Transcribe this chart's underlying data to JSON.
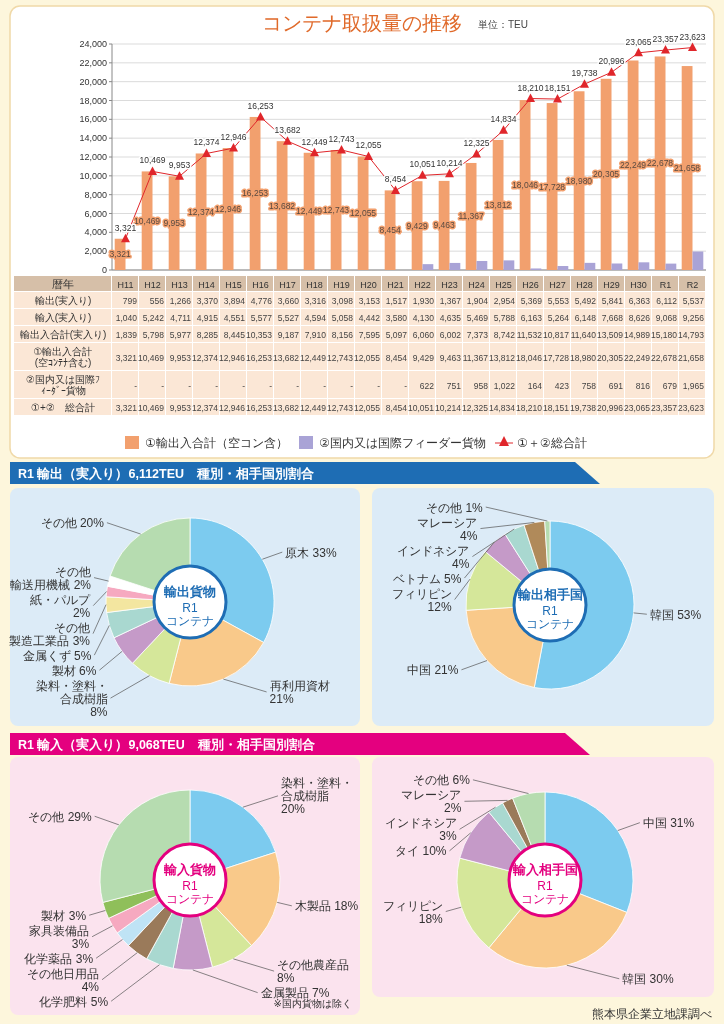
{
  "chart_data": [
    {
      "type": "bar",
      "title": "コンテナ取扱量の推移",
      "subtitle": "単位：TEU",
      "xlabel": "暦年",
      "categories": [
        null,
        null,
        null,
        null,
        null,
        null,
        null,
        null,
        null,
        null,
        null,
        null,
        null,
        null,
        null,
        null,
        null,
        null,
        null,
        null,
        null,
        null
      ],
      "series": [
        {
          "name": "①輸出入合計（空コン含）",
          "color": "#f2a06e",
          "values": [
            3321,
            10469,
            9953,
            12374,
            12946,
            16253,
            13682,
            12449,
            12743,
            12055,
            8454,
            9429,
            9463,
            11367,
            13812,
            18046,
            17728,
            18980,
            20305,
            22249,
            22678,
            21658
          ],
          "value_labels": [
            "3,321",
            "10,469",
            "9,953",
            "12,374",
            "12,946",
            "16,253",
            "13,682",
            "12,449",
            "12,743",
            "12,055",
            "8,454",
            "9,429",
            "9,463",
            "11,367",
            "13,812",
            "18,046",
            "17,728",
            "18,980",
            "20,305",
            "22,249",
            "22,678",
            "21,658"
          ]
        },
        {
          "name": "②国内又は国際フィーダー貨物",
          "color": "#a9a3d6",
          "values": [
            null,
            null,
            null,
            null,
            null,
            null,
            null,
            null,
            null,
            null,
            null,
            622,
            751,
            958,
            1022,
            164,
            423,
            758,
            691,
            816,
            679,
            1965
          ]
        },
        {
          "name": "①＋②総合計",
          "type": "line",
          "color": "#e0262b",
          "marker": "triangle",
          "values": [
            3321,
            10469,
            9953,
            12374,
            12946,
            16253,
            13682,
            12449,
            12743,
            12055,
            8454,
            10051,
            10214,
            12325,
            14834,
            18210,
            18151,
            19738,
            20996,
            23065,
            23357,
            23623
          ],
          "value_labels": [
            "3,321",
            "10,469",
            "9,953",
            "12,374",
            "12,946",
            "16,253",
            "13,682",
            "12,449",
            "12,743",
            "12,055",
            "8,454",
            "10,051",
            "10,214",
            "12,325",
            "14,834",
            "18,210",
            "18,151",
            "19,738",
            "20,996",
            "23,065",
            "23,357",
            "23,623"
          ]
        }
      ],
      "ylim": [
        0,
        24000
      ],
      "yticks": [
        {
          "value": 0,
          "label": "0"
        },
        {
          "value": 2000,
          "label": "2,000"
        },
        {
          "value": 4000,
          "label": "4,000"
        },
        {
          "value": 6000,
          "label": "6,000"
        },
        {
          "value": 8000,
          "label": "8,000"
        },
        {
          "value": 10000,
          "label": "10,000"
        },
        {
          "value": 12000,
          "label": "12,000"
        },
        {
          "value": 14000,
          "label": "14,000"
        },
        {
          "value": 16000,
          "label": "16,000"
        },
        {
          "value": 18000,
          "label": "18,000"
        },
        {
          "value": 20000,
          "label": "20,000"
        },
        {
          "value": 22000,
          "label": "22,000"
        },
        {
          "value": 24000,
          "label": "24,000"
        }
      ],
      "grid": "y",
      "legend": "bottom",
      "tick_labels": "y"
    },
    {
      "type": "other",
      "data_labels": true,
      "categories": [
        "H11",
        "H12",
        "H13",
        "H14",
        "H15",
        "H16",
        "H17",
        "H18",
        "H19",
        "H20",
        "H21",
        "H22",
        "H23",
        "H24",
        "H25",
        "H26",
        "H27",
        "H28",
        "H29",
        "H30",
        "R1",
        "R2"
      ],
      "series": [
        {
          "name": "輸出(実入り)",
          "values": [
            799,
            556,
            1266,
            3370,
            3894,
            4776,
            3660,
            3316,
            3098,
            3153,
            1517,
            1930,
            1367,
            1904,
            2954,
            5369,
            5553,
            5492,
            5841,
            6363,
            6112,
            5537
          ],
          "value_labels": [
            "799",
            "556",
            "1,266",
            "3,370",
            "3,894",
            "4,776",
            "3,660",
            "3,316",
            "3,098",
            "3,153",
            "1,517",
            "1,930",
            "1,367",
            "1,904",
            "2,954",
            "5,369",
            "5,553",
            "5,492",
            "5,841",
            "6,363",
            "6,112",
            "5,537"
          ]
        },
        {
          "name": "輸入(実入り)",
          "values": [
            1040,
            5242,
            4711,
            4915,
            4551,
            5577,
            5527,
            4594,
            5058,
            4442,
            3580,
            4130,
            4635,
            5469,
            5788,
            6163,
            5264,
            6148,
            7668,
            8626,
            9068,
            9256
          ],
          "value_labels": [
            "1,040",
            "5,242",
            "4,711",
            "4,915",
            "4,551",
            "5,577",
            "5,527",
            "4,594",
            "5,058",
            "4,442",
            "3,580",
            "4,130",
            "4,635",
            "5,469",
            "5,788",
            "6,163",
            "5,264",
            "6,148",
            "7,668",
            "8,626",
            "9,068",
            "9,256"
          ]
        },
        {
          "name": "輸出入合計(実入り)",
          "values": [
            1839,
            5798,
            5977,
            8285,
            8445,
            10353,
            9187,
            7910,
            8156,
            7595,
            5097,
            6060,
            6002,
            7373,
            8742,
            11532,
            10817,
            11640,
            13509,
            14989,
            15180,
            14793
          ],
          "value_labels": [
            "1,839",
            "5,798",
            "5,977",
            "8,285",
            "8,445",
            "10,353",
            "9,187",
            "7,910",
            "8,156",
            "7,595",
            "5,097",
            "6,060",
            "6,002",
            "7,373",
            "8,742",
            "11,532",
            "10,817",
            "11,640",
            "13,509",
            "14,989",
            "15,180",
            "14,793"
          ]
        },
        {
          "name": "①輸出入合計(空ｺﾝﾃﾅ含む)",
          "values": [
            3321,
            10469,
            9953,
            12374,
            12946,
            16253,
            13682,
            12449,
            12743,
            12055,
            8454,
            9429,
            9463,
            11367,
            13812,
            18046,
            17728,
            18980,
            20305,
            22249,
            22678,
            21658
          ],
          "value_labels": [
            "3,321",
            "10,469",
            "9,953",
            "12,374",
            "12,946",
            "16,253",
            "13,682",
            "12,449",
            "12,743",
            "12,055",
            "8,454",
            "9,429",
            "9,463",
            "11,367",
            "13,812",
            "18,046",
            "17,728",
            "18,980",
            "20,305",
            "22,249",
            "22,678",
            "21,658"
          ]
        },
        {
          "name": "②国内又は国際ﾌｨｰﾀﾞｰ貨物",
          "values": [
            null,
            null,
            null,
            null,
            null,
            null,
            null,
            null,
            null,
            null,
            null,
            622,
            751,
            958,
            1022,
            164,
            423,
            758,
            691,
            816,
            679,
            1965
          ],
          "value_labels": [
            "-",
            "-",
            "-",
            "-",
            "-",
            "-",
            "-",
            "-",
            "-",
            "-",
            "-",
            "622",
            "751",
            "958",
            "1,022",
            "164",
            "423",
            "758",
            "691",
            "816",
            "679",
            "1,965"
          ]
        },
        {
          "name": "①+②　総合計",
          "values": [
            3321,
            10469,
            9953,
            12374,
            12946,
            16253,
            13682,
            12449,
            12743,
            12055,
            8454,
            10051,
            10214,
            12325,
            14834,
            18210,
            18151,
            19738,
            20996,
            23065,
            23357,
            23623
          ],
          "value_labels": [
            "3,321",
            "10,469",
            "9,953",
            "12,374",
            "12,946",
            "16,253",
            "13,682",
            "12,449",
            "12,743",
            "12,055",
            "8,454",
            "10,051",
            "10,214",
            "12,325",
            "14,834",
            "18,210",
            "18,151",
            "19,738",
            "20,996",
            "23,065",
            "23,357",
            "23,623"
          ]
        }
      ]
    },
    {
      "type": "donut",
      "title": "R1 輸出（実入り）6,112TEU　種別・相手国別割合",
      "subtitle": "輸出貨物",
      "annotations": [
        "R1",
        "コンテナ"
      ],
      "categories": [
        "原木",
        "再利用資材",
        "染料・塗料・合成樹脂",
        "製材",
        "金属くず",
        "その他製造工業品",
        "紙・パルプ",
        "その他輸送用機械",
        "その他"
      ],
      "values": [
        33,
        21,
        8,
        6,
        5,
        3,
        2,
        2,
        20
      ],
      "value_labels": [
        "33%",
        "21%",
        "8%",
        "6%",
        "5%",
        "3%",
        "2%",
        "2%",
        "20%"
      ],
      "colors": [
        "#7ccbef",
        "#f9c98a",
        "#d5e79a",
        "#c59ac8",
        "#a9d8d0",
        "#f3e6a0",
        "#f6a9c0",
        "#ffffff",
        "#b6dcb0"
      ]
    },
    {
      "type": "donut",
      "subtitle": "輸出相手国",
      "annotations": [
        "R1",
        "コンテナ"
      ],
      "categories": [
        "韓国",
        "中国",
        "フィリピン",
        "ベトナム",
        "インドネシア",
        "マレーシア",
        "その他"
      ],
      "values": [
        53,
        21,
        12,
        5,
        4,
        4,
        1
      ],
      "value_labels": [
        "53%",
        "21%",
        "12%",
        "5%",
        "4%",
        "4%",
        "1%"
      ],
      "colors": [
        "#7ccbef",
        "#f9c98a",
        "#d5e79a",
        "#c59ac8",
        "#a9d8d0",
        "#b08a5a",
        "#b6dcb0"
      ]
    },
    {
      "type": "donut",
      "title": "R1 輸入（実入り）9,068TEU　種別・相手国別割合",
      "subtitle": "輸入貨物",
      "annotations": [
        "R1",
        "コンテナ",
        "※国内貨物は除く"
      ],
      "categories": [
        "染料・塗料・合成樹脂",
        "木製品",
        "その他農産品",
        "金属製品",
        "化学肥料",
        "その他日用品",
        "化学薬品",
        "家具装備品",
        "製材",
        "その他"
      ],
      "values": [
        20,
        18,
        8,
        7,
        5,
        4,
        3,
        3,
        3,
        29
      ],
      "value_labels": [
        "20%",
        "18%",
        "8%",
        "7%",
        "5%",
        "4%",
        "3%",
        "3%",
        "3%",
        "29%"
      ],
      "colors": [
        "#7ccbef",
        "#f9c98a",
        "#d5e79a",
        "#c59ac8",
        "#a9d8d0",
        "#9a7a5a",
        "#bfe3f5",
        "#f6a9c0",
        "#8fbf5a",
        "#b6dcb0"
      ]
    },
    {
      "type": "donut",
      "subtitle": "輸入相手国",
      "annotations": [
        "R1",
        "コンテナ",
        "熊本県企業立地課調べ"
      ],
      "categories": [
        "中国",
        "韓国",
        "フィリピン",
        "タイ",
        "インドネシア",
        "マレーシア",
        "その他"
      ],
      "values": [
        31,
        30,
        18,
        10,
        3,
        2,
        6
      ],
      "value_labels": [
        "31%",
        "30%",
        "18%",
        "10%",
        "3%",
        "2%",
        "6%"
      ],
      "colors": [
        "#7ccbef",
        "#f9c98a",
        "#d5e79a",
        "#c59ac8",
        "#a9d8d0",
        "#9a7a5a",
        "#b6dcb0"
      ]
    }
  ]
}
